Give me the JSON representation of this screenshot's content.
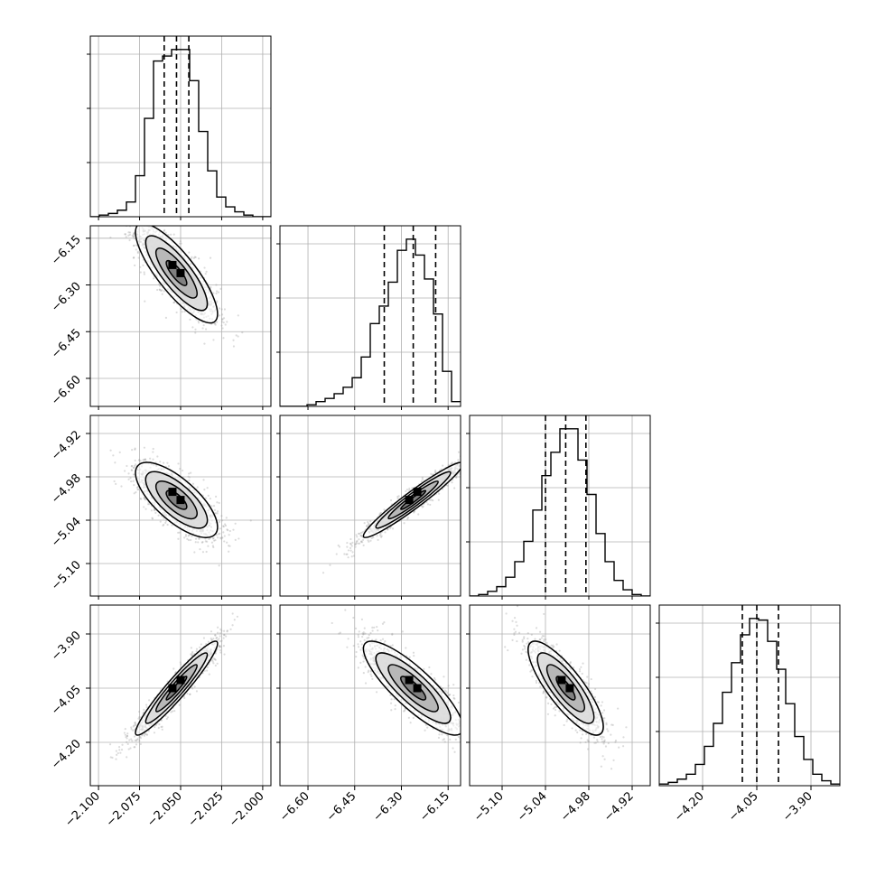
{
  "chart_data": {
    "type": "corner",
    "parameters": [
      {
        "range": [
          -2.105,
          -1.995
        ],
        "ticks": [
          -2.1,
          -2.075,
          -2.05,
          -2.025,
          -2.0
        ],
        "tick_labels": [
          "−2.100",
          "−2.075",
          "−2.050",
          "−2.025",
          "−2.000"
        ]
      },
      {
        "range": [
          -6.69,
          -6.11
        ],
        "ticks": [
          -6.6,
          -6.45,
          -6.3,
          -6.15
        ],
        "tick_labels": [
          "−6.60",
          "−6.45",
          "−6.30",
          "−6.15"
        ]
      },
      {
        "range": [
          -5.145,
          -4.895
        ],
        "ticks": [
          -5.1,
          -5.04,
          -4.98,
          -4.92
        ],
        "tick_labels": [
          "−5.10",
          "−5.04",
          "−4.98",
          "−4.92"
        ]
      },
      {
        "range": [
          -4.32,
          -3.82
        ],
        "ticks": [
          -4.2,
          -4.05,
          -3.9
        ],
        "tick_labels": [
          "−4.20",
          "−4.05",
          "−3.90"
        ]
      }
    ],
    "quantiles": [
      [
        -2.06,
        -2.0525,
        -2.045
      ],
      [
        -6.355,
        -6.262,
        -6.19
      ],
      [
        -5.04,
        -5.012,
        -4.984
      ],
      [
        -4.09,
        -4.05,
        -3.99
      ]
    ],
    "histograms": [
      {
        "edges_range": [
          -2.105,
          -1.995
        ],
        "bins": 20,
        "counts": [
          0,
          1,
          2,
          4,
          9,
          25,
          60,
          95,
          98,
          102,
          102,
          83,
          52,
          28,
          12,
          6,
          3,
          1,
          0,
          0
        ]
      },
      {
        "edges_range": [
          -6.69,
          -6.11
        ],
        "bins": 20,
        "counts": [
          0,
          0,
          0,
          1,
          3,
          5,
          8,
          12,
          18,
          31,
          52,
          63,
          78,
          98,
          105,
          95,
          80,
          58,
          22,
          3
        ]
      },
      {
        "edges_range": [
          -5.145,
          -4.895
        ],
        "bins": 20,
        "counts": [
          0,
          1,
          3,
          6,
          12,
          22,
          35,
          55,
          77,
          92,
          107,
          107,
          87,
          65,
          40,
          22,
          10,
          4,
          1,
          0
        ]
      },
      {
        "edges_range": [
          -4.32,
          -3.82
        ],
        "bins": 20,
        "counts": [
          1,
          2,
          4,
          7,
          13,
          24,
          38,
          57,
          75,
          92,
          102,
          101,
          88,
          71,
          50,
          30,
          16,
          7,
          3,
          1
        ]
      }
    ],
    "pairs": [
      {
        "x": 0,
        "y": 1,
        "mean": [
          -2.0525,
          -6.262
        ],
        "sd": [
          0.0125,
          0.08
        ],
        "rho": -0.82
      },
      {
        "x": 0,
        "y": 2,
        "mean": [
          -2.0525,
          -5.012
        ],
        "sd": [
          0.0125,
          0.026
        ],
        "rho": -0.72
      },
      {
        "x": 1,
        "y": 2,
        "mean": [
          -6.262,
          -5.012
        ],
        "sd": [
          0.08,
          0.026
        ],
        "rho": 0.96
      },
      {
        "x": 0,
        "y": 3,
        "mean": [
          -2.0525,
          -4.05
        ],
        "sd": [
          0.0125,
          0.065
        ],
        "rho": 0.95
      },
      {
        "x": 1,
        "y": 3,
        "mean": [
          -6.262,
          -4.05
        ],
        "sd": [
          0.08,
          0.065
        ],
        "rho": -0.84
      },
      {
        "x": 2,
        "y": 3,
        "mean": [
          -5.012,
          -4.05
        ],
        "sd": [
          0.026,
          0.065
        ],
        "rho": -0.82
      }
    ],
    "contour_levels_sigma": [
      0.5,
      1.0,
      1.5,
      2.0
    ],
    "grid": true,
    "colors": {
      "hist": "#000000",
      "points": "#9a9a9a",
      "contour": "#000000",
      "grid": "#b0b0b0"
    }
  }
}
